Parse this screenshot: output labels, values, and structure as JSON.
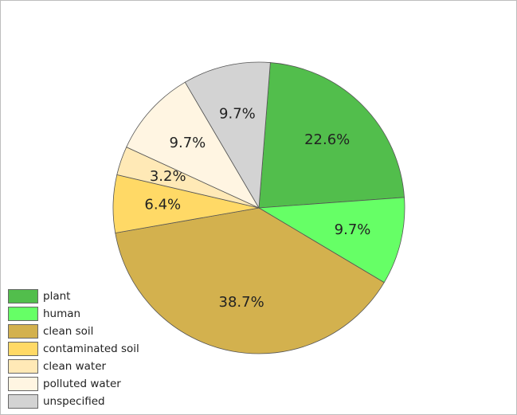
{
  "chart_data": {
    "type": "pie",
    "slices": [
      {
        "name": "plant",
        "value": 22.6,
        "label": "22.6%",
        "color": "#52be4c"
      },
      {
        "name": "human",
        "value": 9.7,
        "label": "9.7%",
        "color": "#66ff66"
      },
      {
        "name": "clean soil",
        "value": 38.7,
        "label": "38.7%",
        "color": "#d3b14e"
      },
      {
        "name": "contaminated soil",
        "value": 6.4,
        "label": "6.4%",
        "color": "#ffd966"
      },
      {
        "name": "clean water",
        "value": 3.2,
        "label": "3.2%",
        "color": "#ffe9b6"
      },
      {
        "name": "polluted water",
        "value": 9.7,
        "label": "9.7%",
        "color": "#fff5e2"
      },
      {
        "name": "unspecified",
        "value": 9.7,
        "label": "9.7%",
        "color": "#d3d3d3"
      }
    ],
    "legend_position": "bottom-left"
  }
}
